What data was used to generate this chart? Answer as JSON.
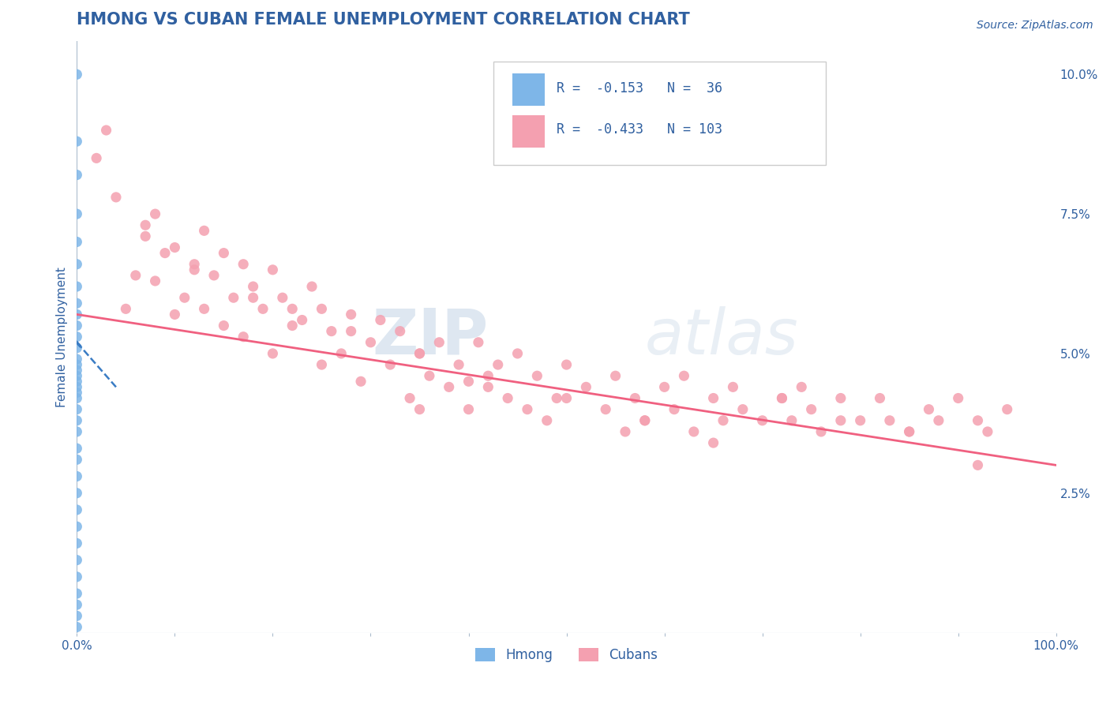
{
  "title": "HMONG VS CUBAN FEMALE UNEMPLOYMENT CORRELATION CHART",
  "source_text": "Source: ZipAtlas.com",
  "ylabel": "Female Unemployment",
  "xlim": [
    0,
    1.0
  ],
  "ylim": [
    0,
    0.106
  ],
  "yticks_right": [
    0.0,
    0.025,
    0.05,
    0.075,
    0.1
  ],
  "yticklabels_right": [
    "",
    "2.5%",
    "5.0%",
    "7.5%",
    "10.0%"
  ],
  "hmong_color": "#7EB6E8",
  "cuban_color": "#F4A0B0",
  "hmong_line_color": "#3A7CC4",
  "cuban_line_color": "#F06080",
  "legend_R_hmong": "-0.153",
  "legend_N_hmong": "36",
  "legend_R_cuban": "-0.433",
  "legend_N_cuban": "103",
  "watermark_zip": "ZIP",
  "watermark_atlas": "atlas",
  "title_color": "#3060A0",
  "axis_color": "#3060A0",
  "grid_color": "#C8D8E8",
  "hmong_x": [
    0.0,
    0.0,
    0.0,
    0.0,
    0.0,
    0.0,
    0.0,
    0.0,
    0.0,
    0.0,
    0.0,
    0.0,
    0.0,
    0.0,
    0.0,
    0.0,
    0.0,
    0.0,
    0.0,
    0.0,
    0.0,
    0.0,
    0.0,
    0.0,
    0.0,
    0.0,
    0.0,
    0.0,
    0.0,
    0.0,
    0.0,
    0.0,
    0.0,
    0.0,
    0.0,
    0.0
  ],
  "hmong_y": [
    0.1,
    0.088,
    0.082,
    0.075,
    0.07,
    0.066,
    0.062,
    0.059,
    0.057,
    0.055,
    0.053,
    0.051,
    0.049,
    0.048,
    0.047,
    0.046,
    0.045,
    0.044,
    0.043,
    0.042,
    0.04,
    0.038,
    0.036,
    0.033,
    0.031,
    0.028,
    0.025,
    0.022,
    0.019,
    0.016,
    0.013,
    0.01,
    0.007,
    0.005,
    0.003,
    0.001
  ],
  "cuban_x": [
    0.02,
    0.03,
    0.05,
    0.06,
    0.07,
    0.08,
    0.08,
    0.09,
    0.1,
    0.1,
    0.11,
    0.12,
    0.13,
    0.13,
    0.14,
    0.15,
    0.15,
    0.16,
    0.17,
    0.17,
    0.18,
    0.19,
    0.2,
    0.2,
    0.21,
    0.22,
    0.23,
    0.24,
    0.25,
    0.25,
    0.26,
    0.27,
    0.28,
    0.29,
    0.3,
    0.31,
    0.32,
    0.33,
    0.34,
    0.35,
    0.35,
    0.36,
    0.37,
    0.38,
    0.39,
    0.4,
    0.4,
    0.41,
    0.42,
    0.43,
    0.44,
    0.45,
    0.46,
    0.47,
    0.48,
    0.49,
    0.5,
    0.52,
    0.54,
    0.55,
    0.56,
    0.57,
    0.58,
    0.6,
    0.61,
    0.62,
    0.63,
    0.65,
    0.66,
    0.67,
    0.68,
    0.7,
    0.72,
    0.73,
    0.74,
    0.75,
    0.76,
    0.78,
    0.8,
    0.82,
    0.83,
    0.85,
    0.87,
    0.88,
    0.9,
    0.92,
    0.93,
    0.95,
    0.04,
    0.07,
    0.12,
    0.18,
    0.22,
    0.28,
    0.35,
    0.42,
    0.5,
    0.58,
    0.65,
    0.72,
    0.78,
    0.85,
    0.92
  ],
  "cuban_y": [
    0.085,
    0.09,
    0.058,
    0.064,
    0.071,
    0.075,
    0.063,
    0.068,
    0.057,
    0.069,
    0.06,
    0.066,
    0.072,
    0.058,
    0.064,
    0.068,
    0.055,
    0.06,
    0.066,
    0.053,
    0.062,
    0.058,
    0.065,
    0.05,
    0.06,
    0.055,
    0.056,
    0.062,
    0.058,
    0.048,
    0.054,
    0.05,
    0.057,
    0.045,
    0.052,
    0.056,
    0.048,
    0.054,
    0.042,
    0.05,
    0.04,
    0.046,
    0.052,
    0.044,
    0.048,
    0.045,
    0.04,
    0.052,
    0.044,
    0.048,
    0.042,
    0.05,
    0.04,
    0.046,
    0.038,
    0.042,
    0.048,
    0.044,
    0.04,
    0.046,
    0.036,
    0.042,
    0.038,
    0.044,
    0.04,
    0.046,
    0.036,
    0.042,
    0.038,
    0.044,
    0.04,
    0.038,
    0.042,
    0.038,
    0.044,
    0.04,
    0.036,
    0.042,
    0.038,
    0.042,
    0.038,
    0.036,
    0.04,
    0.038,
    0.042,
    0.038,
    0.036,
    0.04,
    0.078,
    0.073,
    0.065,
    0.06,
    0.058,
    0.054,
    0.05,
    0.046,
    0.042,
    0.038,
    0.034,
    0.042,
    0.038,
    0.036,
    0.03
  ],
  "cuban_trend_x0": 0.0,
  "cuban_trend_x1": 1.0,
  "cuban_trend_y0": 0.057,
  "cuban_trend_y1": 0.03,
  "hmong_trend_x0": 0.0,
  "hmong_trend_x1": 0.04,
  "hmong_trend_y0": 0.052,
  "hmong_trend_y1": 0.044
}
